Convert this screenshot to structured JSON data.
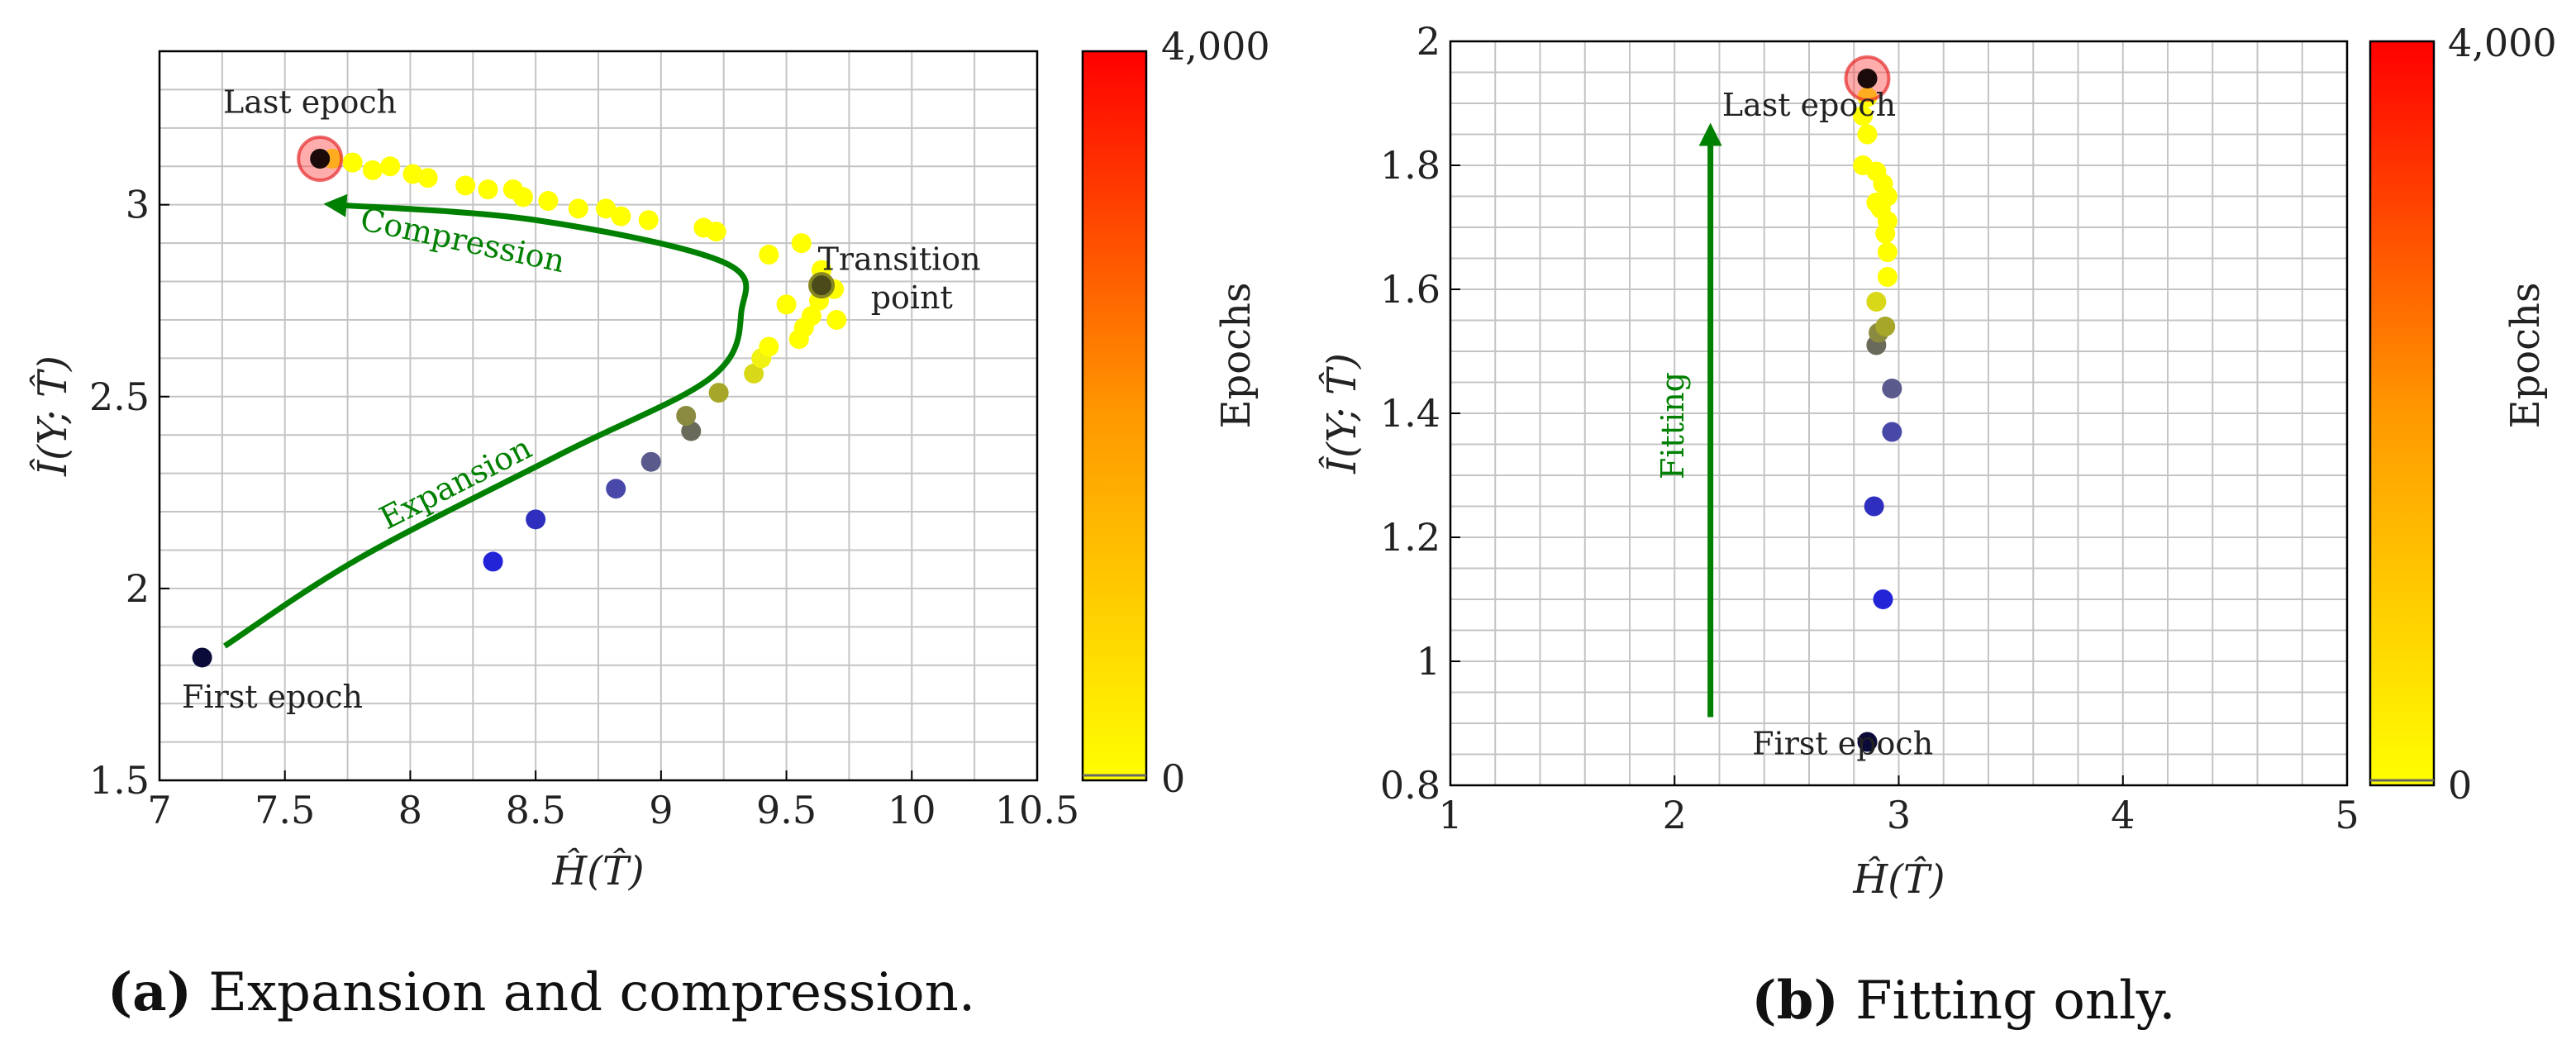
{
  "chart_data": [
    {
      "id": "a",
      "type": "scatter",
      "caption_letter": "(a)",
      "caption_text": " Expansion and compression.",
      "xlabel": "Ĥ(T̂)",
      "ylabel": "Î(Y; T̂)",
      "xlim": [
        7,
        10.5
      ],
      "ylim": [
        1.5,
        3.4
      ],
      "xticks": [
        7,
        7.5,
        8,
        8.5,
        9,
        9.5,
        10,
        10.5
      ],
      "xtick_labels": [
        "7",
        "7.5",
        "8",
        "8.5",
        "9",
        "9.5",
        "10",
        "10.5"
      ],
      "yticks": [
        1.5,
        2,
        2.5,
        3
      ],
      "ytick_labels": [
        "1.5",
        "2",
        "2.5",
        "3"
      ],
      "grid": {
        "x_step": 0.25,
        "y_step": 0.1
      },
      "colorbar": {
        "label": "Epochs",
        "min_label": "0",
        "max_label": "4,000"
      },
      "points": [
        {
          "x": 7.17,
          "y": 1.82,
          "color": "#0b0b3a"
        },
        {
          "x": 8.33,
          "y": 2.07,
          "color": "#2323d8"
        },
        {
          "x": 8.5,
          "y": 2.18,
          "color": "#2f2fbf"
        },
        {
          "x": 8.82,
          "y": 2.26,
          "color": "#4848a8"
        },
        {
          "x": 8.96,
          "y": 2.33,
          "color": "#5a5a8c"
        },
        {
          "x": 9.12,
          "y": 2.41,
          "color": "#6a6a5a"
        },
        {
          "x": 9.1,
          "y": 2.45,
          "color": "#8a8a40"
        },
        {
          "x": 9.23,
          "y": 2.51,
          "color": "#a6a628"
        },
        {
          "x": 9.37,
          "y": 2.56,
          "color": "#d8d818"
        },
        {
          "x": 9.4,
          "y": 2.6,
          "color": "#f2f212"
        },
        {
          "x": 9.43,
          "y": 2.63,
          "color": "#ffff00"
        },
        {
          "x": 9.55,
          "y": 2.65,
          "color": "#ffff00"
        },
        {
          "x": 9.57,
          "y": 2.68,
          "color": "#ffff00"
        },
        {
          "x": 9.6,
          "y": 2.71,
          "color": "#ffff00"
        },
        {
          "x": 9.7,
          "y": 2.7,
          "color": "#ffff00"
        },
        {
          "x": 9.5,
          "y": 2.74,
          "color": "#ffff00"
        },
        {
          "x": 9.63,
          "y": 2.75,
          "color": "#ffff00"
        },
        {
          "x": 9.69,
          "y": 2.78,
          "color": "#ffff00"
        },
        {
          "x": 9.64,
          "y": 2.83,
          "color": "#ffff00"
        },
        {
          "x": 9.43,
          "y": 2.87,
          "color": "#ffff00"
        },
        {
          "x": 9.56,
          "y": 2.9,
          "color": "#ffff00"
        },
        {
          "x": 9.17,
          "y": 2.94,
          "color": "#ffff00"
        },
        {
          "x": 9.22,
          "y": 2.93,
          "color": "#ffff00"
        },
        {
          "x": 8.95,
          "y": 2.96,
          "color": "#ffff00"
        },
        {
          "x": 8.84,
          "y": 2.97,
          "color": "#ffff00"
        },
        {
          "x": 8.78,
          "y": 2.99,
          "color": "#ffff00"
        },
        {
          "x": 8.67,
          "y": 2.99,
          "color": "#ffff00"
        },
        {
          "x": 8.55,
          "y": 3.01,
          "color": "#ffff00"
        },
        {
          "x": 8.45,
          "y": 3.02,
          "color": "#ffff00"
        },
        {
          "x": 8.41,
          "y": 3.04,
          "color": "#ffff00"
        },
        {
          "x": 8.31,
          "y": 3.04,
          "color": "#ffff00"
        },
        {
          "x": 8.22,
          "y": 3.05,
          "color": "#ffff00"
        },
        {
          "x": 8.07,
          "y": 3.07,
          "color": "#ffff00"
        },
        {
          "x": 8.01,
          "y": 3.08,
          "color": "#ffff00"
        },
        {
          "x": 7.92,
          "y": 3.1,
          "color": "#ffff00"
        },
        {
          "x": 7.85,
          "y": 3.09,
          "color": "#ffff00"
        },
        {
          "x": 7.77,
          "y": 3.11,
          "color": "#ffff00"
        },
        {
          "x": 7.69,
          "y": 3.12,
          "color": "#ffff00"
        }
      ],
      "highlight": {
        "x": 7.64,
        "y": 3.12,
        "color": "#1a0a0a"
      },
      "transition_marker": {
        "x": 9.64,
        "y": 2.79,
        "color": "#4a4a1a"
      },
      "curve": [
        [
          7.26,
          1.85
        ],
        [
          7.8,
          2.08
        ],
        [
          8.6,
          2.35
        ],
        [
          9.2,
          2.55
        ],
        [
          9.32,
          2.72
        ],
        [
          9.25,
          2.85
        ],
        [
          8.5,
          2.96
        ],
        [
          7.7,
          3.0
        ]
      ],
      "curve_color": "#008000",
      "annotations": [
        {
          "text": "Last epoch",
          "x": 7.6,
          "y": 3.24
        },
        {
          "text": "First epoch",
          "x": 7.45,
          "y": 1.69
        },
        {
          "text": "Transition",
          "x": 9.95,
          "y": 2.83
        },
        {
          "text": "point",
          "x": 10.0,
          "y": 2.73
        },
        {
          "text": "Compression",
          "x": 8.2,
          "y": 2.88,
          "rotate": 12,
          "color": "#008000"
        },
        {
          "text": "Expansion",
          "x": 8.2,
          "y": 2.25,
          "rotate": -27,
          "color": "#008000"
        }
      ]
    },
    {
      "id": "b",
      "type": "scatter",
      "caption_letter": "(b)",
      "caption_text": " Fitting only.",
      "xlabel": "Ĥ(T̂)",
      "ylabel": "Î(Y; T̂)",
      "xlim": [
        1,
        5
      ],
      "ylim": [
        0.8,
        2.0
      ],
      "xticks": [
        1,
        2,
        3,
        4,
        5
      ],
      "xtick_labels": [
        "1",
        "2",
        "3",
        "4",
        "5"
      ],
      "yticks": [
        0.8,
        1.0,
        1.2,
        1.4,
        1.6,
        1.8,
        2.0
      ],
      "ytick_labels": [
        "0.8",
        "1",
        "1.2",
        "1.4",
        "1.6",
        "1.8",
        "2"
      ],
      "grid": {
        "x_step": 0.2,
        "y_step": 0.05
      },
      "colorbar": {
        "label": "Epochs",
        "min_label": "0",
        "max_label": "4,000"
      },
      "points": [
        {
          "x": 2.86,
          "y": 0.87,
          "color": "#0b0b3a"
        },
        {
          "x": 2.93,
          "y": 1.1,
          "color": "#2323d8"
        },
        {
          "x": 2.89,
          "y": 1.25,
          "color": "#2f2fbf"
        },
        {
          "x": 2.97,
          "y": 1.37,
          "color": "#4848a8"
        },
        {
          "x": 2.97,
          "y": 1.44,
          "color": "#5a5a8c"
        },
        {
          "x": 2.9,
          "y": 1.51,
          "color": "#6a6a5a"
        },
        {
          "x": 2.91,
          "y": 1.53,
          "color": "#8a8a40"
        },
        {
          "x": 2.94,
          "y": 1.54,
          "color": "#a6a628"
        },
        {
          "x": 2.9,
          "y": 1.58,
          "color": "#d8d818"
        },
        {
          "x": 2.95,
          "y": 1.62,
          "color": "#ffff00"
        },
        {
          "x": 2.95,
          "y": 1.66,
          "color": "#ffff00"
        },
        {
          "x": 2.94,
          "y": 1.69,
          "color": "#ffff00"
        },
        {
          "x": 2.95,
          "y": 1.71,
          "color": "#ffff00"
        },
        {
          "x": 2.92,
          "y": 1.73,
          "color": "#ffff00"
        },
        {
          "x": 2.95,
          "y": 1.75,
          "color": "#ffff00"
        },
        {
          "x": 2.9,
          "y": 1.74,
          "color": "#ffff00"
        },
        {
          "x": 2.93,
          "y": 1.77,
          "color": "#ffff00"
        },
        {
          "x": 2.9,
          "y": 1.79,
          "color": "#ffff00"
        },
        {
          "x": 2.84,
          "y": 1.8,
          "color": "#ffff00"
        },
        {
          "x": 2.86,
          "y": 1.85,
          "color": "#ffff00"
        },
        {
          "x": 2.84,
          "y": 1.88,
          "color": "#ffff00"
        },
        {
          "x": 2.86,
          "y": 1.91,
          "color": "#ffff00"
        }
      ],
      "highlight": {
        "x": 2.86,
        "y": 1.94,
        "color": "#1a0a0a"
      },
      "arrow": {
        "x": 2.16,
        "y_start": 0.91,
        "y_end": 1.85,
        "color": "#008000"
      },
      "annotations": [
        {
          "text": "Last epoch",
          "x": 2.6,
          "y": 1.88
        },
        {
          "text": "First epoch",
          "x": 2.75,
          "y": 0.85
        },
        {
          "text": "Fitting",
          "x": 2.04,
          "y": 1.38,
          "rotate": -90,
          "color": "#008000"
        }
      ]
    }
  ]
}
